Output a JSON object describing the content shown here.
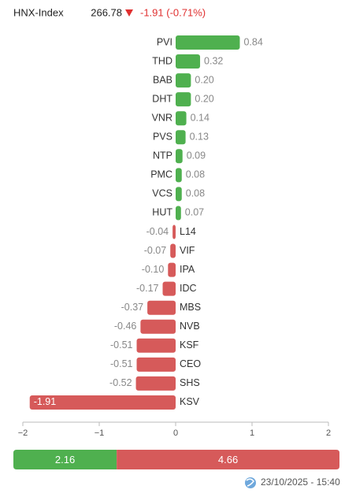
{
  "header": {
    "index_name": "HNX-Index",
    "value": "266.78",
    "change": "-1.91 (-0.71%)"
  },
  "chart_data": {
    "type": "hbar",
    "categories": [
      "PVI",
      "THD",
      "BAB",
      "DHT",
      "VNR",
      "PVS",
      "NTP",
      "PMC",
      "VCS",
      "HUT",
      "L14",
      "VIF",
      "IPA",
      "IDC",
      "MBS",
      "NVB",
      "KSF",
      "CEO",
      "SHS",
      "KSV"
    ],
    "values": [
      0.84,
      0.32,
      0.2,
      0.2,
      0.14,
      0.13,
      0.09,
      0.08,
      0.08,
      0.07,
      -0.04,
      -0.07,
      -0.1,
      -0.17,
      -0.37,
      -0.46,
      -0.51,
      -0.51,
      -0.52,
      -1.91
    ],
    "value_labels": [
      "0.84",
      "0.32",
      "0.20",
      "0.20",
      "0.14",
      "0.13",
      "0.09",
      "0.08",
      "0.08",
      "0.07",
      "-0.04",
      "-0.07",
      "-0.10",
      "-0.17",
      "-0.37",
      "-0.46",
      "-0.51",
      "-0.51",
      "-0.52",
      "-1.91"
    ],
    "colors": {
      "positive": "#4fb04f",
      "negative": "#d65a5a"
    },
    "xlim": [
      -2,
      2
    ],
    "xticks": [
      {
        "value": -2,
        "label": "−2"
      },
      {
        "value": -1,
        "label": "−1"
      },
      0,
      1,
      2
    ]
  },
  "summary": {
    "values": [
      2.16,
      4.66
    ],
    "value_labels": [
      "2.16",
      "4.66"
    ],
    "colors": [
      "#4fb04f",
      "#d65a5a"
    ]
  },
  "footer": {
    "timestamp": "23/10/2025 - 15:40"
  }
}
